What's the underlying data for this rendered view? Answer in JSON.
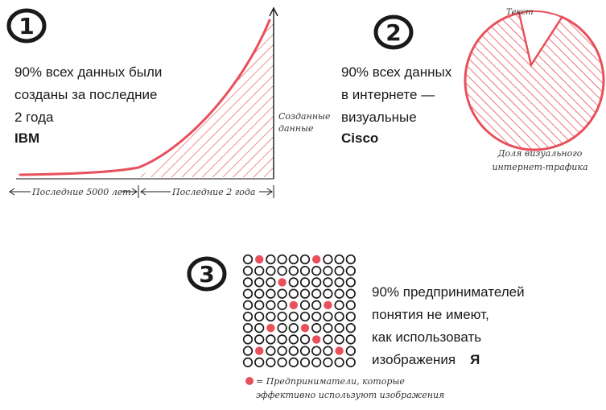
{
  "colors": {
    "accent": "#e8505b",
    "ink": "#1a1a1a"
  },
  "panel1": {
    "number": "1",
    "stat_lines": [
      "90% всех данных были",
      "созданы за последние",
      "2 года"
    ],
    "source": "IBM",
    "chart_data": {
      "type": "area",
      "annotation": "Созданные данные",
      "x_labels": [
        "Последние 5000 лет",
        "Последние 2 года"
      ]
    }
  },
  "panel2": {
    "number": "2",
    "stat_lines": [
      "90% всех данных",
      "в интернете —",
      "визуальные"
    ],
    "source": "Cisco",
    "chart_data": {
      "type": "pie",
      "slices": [
        {
          "label": "Текст",
          "value": 10
        },
        {
          "label": "",
          "value": 90
        }
      ],
      "caption": "Доля визуального интернет-трафика"
    }
  },
  "panel3": {
    "number": "3",
    "stat_lines": [
      "90% предпринимателей",
      "понятия не имеют,",
      "как использовать",
      "изображения"
    ],
    "source": "Я",
    "grid": {
      "rows": 10,
      "cols": 10,
      "highlighted": 10
    },
    "legend": "= Предприниматели, которые эффективно используют изображения"
  }
}
